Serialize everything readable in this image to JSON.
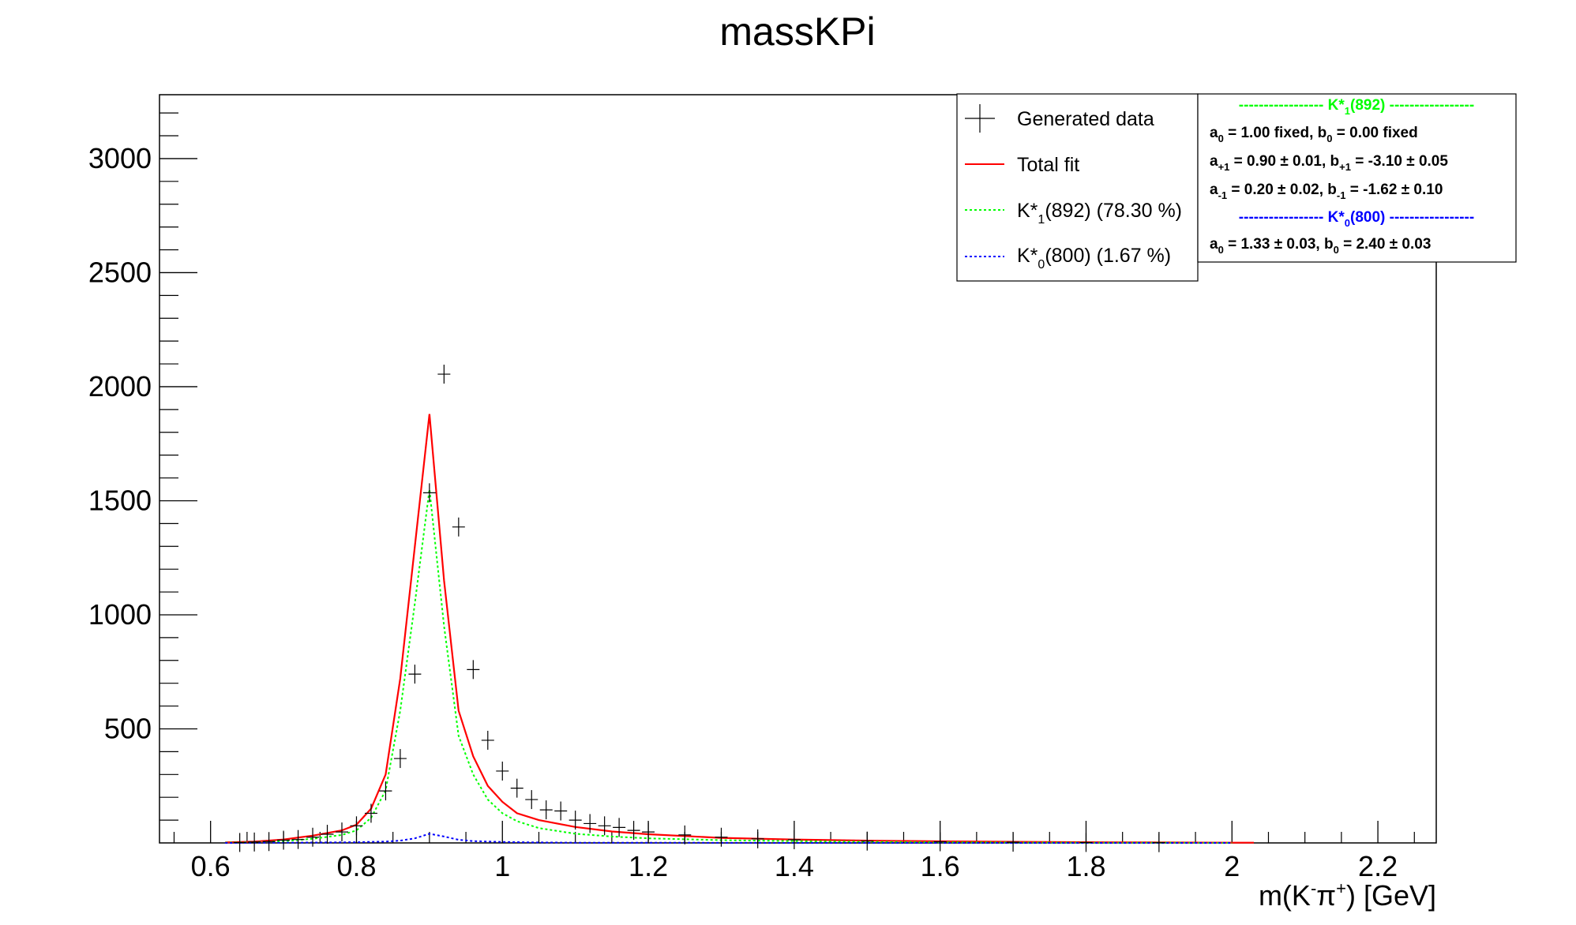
{
  "chart_data": {
    "type": "line",
    "title": "massKPi",
    "xlabel": "m(K",
    "xlabel_sup1": "-",
    "xlabel_pi": "π",
    "xlabel_sup2": "+",
    "xlabel_unit": ") [GeV]",
    "xlim": [
      0.53,
      2.28
    ],
    "ylim": [
      0,
      3280
    ],
    "x_ticks": [
      0.6,
      0.8,
      1,
      1.2,
      1.4,
      1.6,
      1.8,
      2,
      2.2
    ],
    "x_tick_labels": [
      "0.6",
      "0.8",
      "1",
      "1.2",
      "1.4",
      "1.6",
      "1.8",
      "2",
      "2.2"
    ],
    "y_ticks": [
      500,
      1000,
      1500,
      2000,
      2500,
      3000
    ],
    "y_tick_labels": [
      "500",
      "1000",
      "1500",
      "2000",
      "2500",
      "3000"
    ],
    "grid": false,
    "legend_position": "top-right",
    "data_points": [
      {
        "x": 0.64,
        "y": 2
      },
      {
        "x": 0.66,
        "y": 4
      },
      {
        "x": 0.68,
        "y": 6
      },
      {
        "x": 0.7,
        "y": 12
      },
      {
        "x": 0.72,
        "y": 15
      },
      {
        "x": 0.74,
        "y": 25
      },
      {
        "x": 0.76,
        "y": 38
      },
      {
        "x": 0.78,
        "y": 48
      },
      {
        "x": 0.8,
        "y": 75
      },
      {
        "x": 0.82,
        "y": 130
      },
      {
        "x": 0.84,
        "y": 228
      },
      {
        "x": 0.86,
        "y": 370
      },
      {
        "x": 0.88,
        "y": 740
      },
      {
        "x": 0.9,
        "y": 1535
      },
      {
        "x": 0.92,
        "y": 2055
      },
      {
        "x": 0.94,
        "y": 1385
      },
      {
        "x": 0.96,
        "y": 760
      },
      {
        "x": 0.98,
        "y": 450
      },
      {
        "x": 1.0,
        "y": 315
      },
      {
        "x": 1.02,
        "y": 240
      },
      {
        "x": 1.04,
        "y": 190
      },
      {
        "x": 1.06,
        "y": 145
      },
      {
        "x": 1.08,
        "y": 140
      },
      {
        "x": 1.1,
        "y": 100
      },
      {
        "x": 1.12,
        "y": 85
      },
      {
        "x": 1.14,
        "y": 75
      },
      {
        "x": 1.16,
        "y": 68
      },
      {
        "x": 1.18,
        "y": 55
      },
      {
        "x": 1.2,
        "y": 48
      },
      {
        "x": 1.25,
        "y": 35
      },
      {
        "x": 1.3,
        "y": 25
      },
      {
        "x": 1.35,
        "y": 18
      },
      {
        "x": 1.4,
        "y": 14
      },
      {
        "x": 1.5,
        "y": 8
      },
      {
        "x": 1.6,
        "y": 5
      },
      {
        "x": 1.7,
        "y": 3
      },
      {
        "x": 1.8,
        "y": 2
      },
      {
        "x": 1.9,
        "y": 1
      }
    ],
    "series": [
      {
        "name": "Total fit",
        "color": "#ff0000",
        "style": "solid",
        "x": [
          0.62,
          0.66,
          0.7,
          0.74,
          0.78,
          0.8,
          0.82,
          0.84,
          0.86,
          0.88,
          0.9,
          0.92,
          0.94,
          0.96,
          0.98,
          1.0,
          1.02,
          1.05,
          1.1,
          1.15,
          1.2,
          1.3,
          1.4,
          1.5,
          1.6,
          1.7,
          1.8,
          1.9,
          2.0,
          2.03
        ],
        "y": [
          2,
          6,
          15,
          32,
          55,
          80,
          150,
          300,
          720,
          1300,
          1880,
          1150,
          580,
          380,
          250,
          180,
          130,
          100,
          70,
          50,
          38,
          22,
          15,
          10,
          7,
          5,
          3,
          2,
          1,
          1
        ]
      },
      {
        "name": "K*1(892) (78.30 %)",
        "color": "#00ff00",
        "style": "dotted",
        "x": [
          0.62,
          0.66,
          0.7,
          0.74,
          0.78,
          0.8,
          0.82,
          0.84,
          0.86,
          0.88,
          0.9,
          0.92,
          0.94,
          0.96,
          0.98,
          1.0,
          1.02,
          1.05,
          1.1,
          1.15,
          1.2,
          1.3,
          1.4,
          1.5,
          1.6,
          1.7,
          1.8,
          1.9,
          2.0
        ],
        "y": [
          1,
          3,
          8,
          18,
          35,
          55,
          110,
          230,
          580,
          1050,
          1550,
          950,
          470,
          300,
          190,
          130,
          95,
          65,
          40,
          28,
          20,
          12,
          8,
          5,
          3,
          2,
          1,
          1,
          0
        ]
      },
      {
        "name": "K*0(800) (1.67 %)",
        "color": "#0000ff",
        "style": "dotted",
        "x": [
          0.62,
          0.7,
          0.76,
          0.8,
          0.84,
          0.86,
          0.88,
          0.9,
          0.92,
          0.94,
          0.96,
          1.0,
          1.05,
          1.1,
          1.2,
          1.4,
          1.6,
          1.8,
          2.0
        ],
        "y": [
          0,
          1,
          2,
          3,
          6,
          10,
          20,
          40,
          28,
          14,
          8,
          4,
          2,
          1,
          1,
          0,
          0,
          0,
          0
        ]
      }
    ],
    "legend": {
      "items": [
        {
          "label": "Generated data",
          "kind": "data",
          "color": "#000000"
        },
        {
          "label": "Total fit",
          "kind": "solid",
          "color": "#ff0000"
        },
        {
          "label_pre": "K*",
          "label_sub": "1",
          "label_post": "(892) (78.30 %)",
          "kind": "dotted",
          "color": "#00ff00"
        },
        {
          "label_pre": "K*",
          "label_sub": "0",
          "label_post": "(800) (1.67 %)",
          "kind": "dotted",
          "color": "#0000ff"
        }
      ]
    },
    "fit_box": {
      "green_color": "#00ff00",
      "blue_color": "#0000ff",
      "dashes": "-----------------",
      "k1_pre": "K*",
      "k1_sub": "1",
      "k1_post": "(892)",
      "k1_a": "a",
      "k1_a_sub": "0",
      "k1_a_val": " = 1.00 fixed, b",
      "k1_b_sub": "0",
      "k1_b_val": " = 0.00 fixed",
      "k1_ap": "a",
      "k1_ap_sub": "+1",
      "k1_ap_val": " = 0.90 ± 0.01, b",
      "k1_bp_sub": "+1",
      "k1_bp_val": " = -3.10 ± 0.05",
      "k1_am": "a",
      "k1_am_sub": "-1",
      "k1_am_val": " = 0.20 ± 0.02, b",
      "k1_bm_sub": "-1",
      "k1_bm_val": " = -1.62 ± 0.10",
      "k0_pre": "K*",
      "k0_sub": "0",
      "k0_post": "(800)",
      "k0_a": "a",
      "k0_a_sub": "0",
      "k0_a_val": " = 1.33 ± 0.03, b",
      "k0_b_sub": "0",
      "k0_b_val": " = 2.40 ± 0.03"
    }
  }
}
